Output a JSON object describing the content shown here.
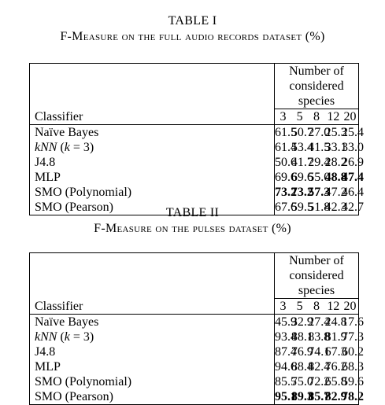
{
  "table1": {
    "label": "TABLE I",
    "title": "F-Measure on the full audio records dataset (%)",
    "group_header": "Number of considered species",
    "classifier_header": "Classifier",
    "columns": [
      "3",
      "5",
      "8",
      "12",
      "20"
    ],
    "rows": [
      {
        "name": "Naïve Bayes",
        "values": [
          "61.5",
          "50.7",
          "27.0",
          "25.3",
          "25.4"
        ],
        "bold": [
          false,
          false,
          false,
          false,
          false
        ]
      },
      {
        "name": "kNN (k = 3)",
        "values": [
          "61.4",
          "53.4",
          "41.5",
          "33.1",
          "33.0"
        ],
        "bold": [
          false,
          false,
          false,
          false,
          false
        ]
      },
      {
        "name": "J4.8",
        "values": [
          "50.6",
          "41.7",
          "29.4",
          "28.2",
          "26.9"
        ],
        "bold": [
          false,
          false,
          false,
          false,
          false
        ]
      },
      {
        "name": "MLP",
        "values": [
          "69.6",
          "69.6",
          "55.0",
          "48.8",
          "47.4"
        ],
        "bold": [
          false,
          false,
          false,
          true,
          true
        ]
      },
      {
        "name": "SMO (Polynomial)",
        "values": [
          "73.2",
          "73.2",
          "57.3",
          "47.2",
          "46.4"
        ],
        "bold": [
          true,
          true,
          true,
          false,
          false
        ]
      },
      {
        "name": "SMO (Pearson)",
        "values": [
          "67.6",
          "59.5",
          "51.8",
          "42.3",
          "42.7"
        ],
        "bold": [
          false,
          false,
          false,
          false,
          false
        ]
      }
    ]
  },
  "table2": {
    "label": "TABLE II",
    "title": "F-Measure on the pulses dataset (%)",
    "group_header": "Number of considered species",
    "classifier_header": "Classifier",
    "columns": [
      "3",
      "5",
      "8",
      "12",
      "20"
    ],
    "rows": [
      {
        "name": "Naïve Bayes",
        "values": [
          "45.9",
          "32.9",
          "27.4",
          "24.8",
          "17.6"
        ],
        "bold": [
          false,
          false,
          false,
          false,
          false
        ]
      },
      {
        "name": "kNN (k = 3)",
        "values": [
          "93.4",
          "88.1",
          "83.8",
          "81.9",
          "77.3"
        ],
        "bold": [
          false,
          false,
          false,
          false,
          false
        ]
      },
      {
        "name": "J4.8",
        "values": [
          "87.4",
          "76.9",
          "74.1",
          "67.3",
          "60.2"
        ],
        "bold": [
          false,
          false,
          false,
          false,
          false
        ]
      },
      {
        "name": "MLP",
        "values": [
          "94.6",
          "88.4",
          "82.4",
          "76.2",
          "68.3"
        ],
        "bold": [
          false,
          false,
          false,
          false,
          false
        ]
      },
      {
        "name": "SMO (Polynomial)",
        "values": [
          "85.5",
          "75.0",
          "72.2",
          "65.8",
          "59.6"
        ],
        "bold": [
          false,
          false,
          false,
          false,
          false
        ]
      },
      {
        "name": "SMO (Pearson)",
        "values": [
          "95.1",
          "89.3",
          "85.7",
          "82.9",
          "78.2"
        ],
        "bold": [
          true,
          true,
          true,
          true,
          true
        ]
      }
    ]
  }
}
